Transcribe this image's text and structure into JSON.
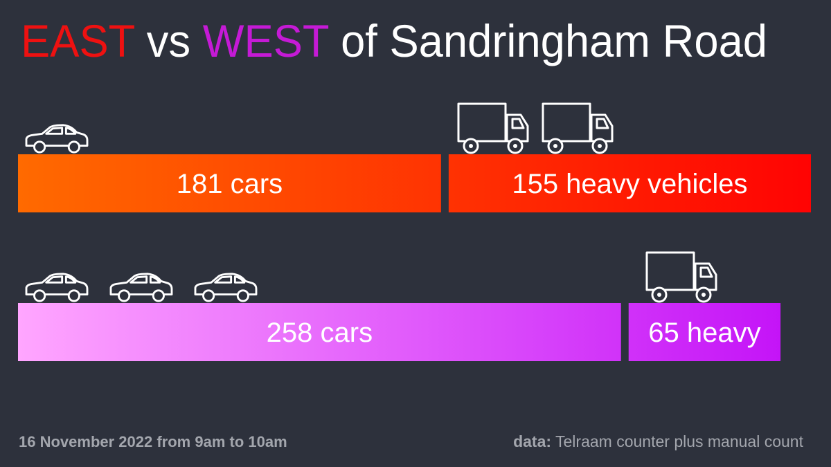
{
  "chart_data": {
    "type": "bar",
    "categories": [
      "EAST",
      "WEST"
    ],
    "category_colors": [
      "#ee1111",
      "#c51ad6"
    ],
    "title_joiners": [
      "vs",
      "of Sandringham Road"
    ],
    "bar_gradients": [
      [
        "#ff6a00",
        "#ff0303"
      ],
      [
        "#ffa6ff",
        "#c20ef7"
      ]
    ],
    "series": [
      {
        "values": [
          181,
          258
        ],
        "value_labels": [
          "181 cars",
          "258 cars"
        ]
      },
      {
        "values": [
          155,
          65
        ],
        "value_labels": [
          "155 heavy vehicles",
          "65 heavy"
        ]
      }
    ],
    "footer_left": "16 November 2022 from 9am to 10am",
    "source_label": "data:",
    "source": "Telraam counter plus manual count"
  }
}
